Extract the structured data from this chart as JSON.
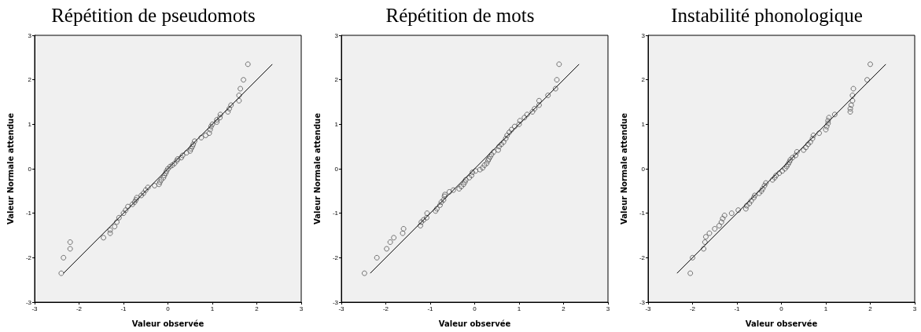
{
  "chart_data": [
    {
      "type": "scatter",
      "title": "Répétition de pseudomots",
      "xlabel": "Valeur observée",
      "ylabel": "Valeur Normale attendue",
      "xlim": [
        -3,
        3
      ],
      "ylim": [
        -3,
        3
      ],
      "xticks": [
        -3,
        -2,
        -1,
        0,
        1,
        2,
        3
      ],
      "yticks": [
        -3,
        -2,
        -1,
        0,
        1,
        2,
        3
      ],
      "grid": false,
      "series": [
        {
          "color": "#555555",
          "marker": "circle",
          "x": [
            -2.4,
            -2.35,
            -2.2,
            -2.2,
            -1.45,
            -1.3,
            -1.3,
            -1.2,
            -1.15,
            -1.1,
            -1.0,
            -0.95,
            -0.9,
            -0.8,
            -0.75,
            -0.72,
            -0.7,
            -0.6,
            -0.55,
            -0.5,
            -0.45,
            -0.3,
            -0.2,
            -0.18,
            -0.15,
            -0.1,
            -0.08,
            -0.05,
            -0.03,
            0,
            0.05,
            0.1,
            0.15,
            0.2,
            0.22,
            0.3,
            0.33,
            0.42,
            0.5,
            0.52,
            0.55,
            0.57,
            0.6,
            0.75,
            0.85,
            0.93,
            0.95,
            0.97,
            1.0,
            1.1,
            1.1,
            1.17,
            1.18,
            1.35,
            1.38,
            1.42,
            1.6,
            1.6,
            1.63,
            1.7,
            1.8
          ],
          "values": [
            -2.35,
            -2.0,
            -1.8,
            -1.65,
            -1.55,
            -1.45,
            -1.38,
            -1.3,
            -1.2,
            -1.1,
            -1.0,
            -0.93,
            -0.85,
            -0.8,
            -0.75,
            -0.7,
            -0.65,
            -0.6,
            -0.55,
            -0.48,
            -0.42,
            -0.38,
            -0.35,
            -0.3,
            -0.25,
            -0.2,
            -0.15,
            -0.1,
            -0.05,
            0,
            0.05,
            0.08,
            0.12,
            0.18,
            0.22,
            0.25,
            0.3,
            0.36,
            0.4,
            0.45,
            0.5,
            0.55,
            0.62,
            0.7,
            0.75,
            0.8,
            0.88,
            0.95,
            1.0,
            1.05,
            1.1,
            1.15,
            1.22,
            1.28,
            1.35,
            1.43,
            1.53,
            1.65,
            1.8,
            2.0,
            2.35
          ]
        },
        {
          "type": "line",
          "marker": "none",
          "color": "#000000",
          "x": [
            -2.35,
            2.35
          ],
          "values": [
            -2.35,
            2.35
          ]
        }
      ]
    },
    {
      "type": "scatter",
      "title": "Répétition de mots",
      "xlabel": "Valeur observée",
      "ylabel": "Valeur Normale attendue",
      "xlim": [
        -3,
        3
      ],
      "ylim": [
        -3,
        3
      ],
      "xticks": [
        -3,
        -2,
        -1,
        0,
        1,
        2,
        3
      ],
      "yticks": [
        -3,
        -2,
        -1,
        0,
        1,
        2,
        3
      ],
      "grid": false,
      "series": [
        {
          "color": "#555555",
          "marker": "circle",
          "x": [
            -2.48,
            -2.2,
            -1.98,
            -1.9,
            -1.82,
            -1.62,
            -1.6,
            -1.22,
            -1.2,
            -1.15,
            -1.08,
            -1.07,
            -0.88,
            -0.85,
            -0.78,
            -0.75,
            -0.7,
            -0.68,
            -0.67,
            -0.57,
            -0.48,
            -0.35,
            -0.3,
            -0.25,
            -0.22,
            -0.2,
            -0.12,
            -0.07,
            -0.05,
            0.02,
            0.12,
            0.18,
            0.22,
            0.27,
            0.3,
            0.32,
            0.35,
            0.38,
            0.43,
            0.53,
            0.55,
            0.6,
            0.65,
            0.7,
            0.73,
            0.78,
            0.83,
            0.9,
            1.0,
            1.02,
            1.12,
            1.18,
            1.3,
            1.35,
            1.45,
            1.45,
            1.65,
            1.82,
            1.85,
            1.9
          ],
          "values": [
            -2.35,
            -2.0,
            -1.8,
            -1.65,
            -1.55,
            -1.45,
            -1.35,
            -1.28,
            -1.2,
            -1.15,
            -1.1,
            -1.0,
            -0.95,
            -0.9,
            -0.82,
            -0.75,
            -0.7,
            -0.62,
            -0.58,
            -0.52,
            -0.48,
            -0.45,
            -0.4,
            -0.35,
            -0.3,
            -0.25,
            -0.2,
            -0.15,
            -0.08,
            -0.05,
            -0.02,
            0.02,
            0.08,
            0.12,
            0.18,
            0.22,
            0.27,
            0.32,
            0.38,
            0.42,
            0.5,
            0.55,
            0.6,
            0.68,
            0.75,
            0.82,
            0.88,
            0.95,
            1.0,
            1.08,
            1.15,
            1.22,
            1.28,
            1.35,
            1.43,
            1.53,
            1.65,
            1.8,
            2.0,
            2.35
          ]
        },
        {
          "type": "line",
          "marker": "none",
          "color": "#000000",
          "x": [
            -2.35,
            2.35
          ],
          "values": [
            -2.35,
            2.35
          ]
        }
      ]
    },
    {
      "type": "scatter",
      "title": "Instabilité phonologique",
      "xlabel": "Valeur observée",
      "ylabel": "Valeur Normale attendue",
      "xlim": [
        -3,
        3
      ],
      "ylim": [
        -3,
        3
      ],
      "xticks": [
        -3,
        -2,
        -1,
        0,
        1,
        2,
        3
      ],
      "yticks": [
        -3,
        -2,
        -1,
        0,
        1,
        2,
        3
      ],
      "grid": false,
      "series": [
        {
          "color": "#555555",
          "marker": "circle",
          "x": [
            -2.05,
            -2.0,
            -1.75,
            -1.72,
            -1.7,
            -1.62,
            -1.5,
            -1.4,
            -1.35,
            -1.32,
            -1.28,
            -1.12,
            -0.97,
            -0.8,
            -0.78,
            -0.72,
            -0.68,
            -0.62,
            -0.6,
            -0.5,
            -0.45,
            -0.42,
            -0.38,
            -0.35,
            -0.2,
            -0.15,
            -0.12,
            -0.05,
            0.02,
            0.08,
            0.12,
            0.15,
            0.18,
            0.2,
            0.25,
            0.32,
            0.35,
            0.5,
            0.55,
            0.6,
            0.65,
            0.7,
            0.72,
            0.85,
            1.0,
            1.02,
            1.05,
            1.05,
            1.07,
            1.2,
            1.55,
            1.55,
            1.57,
            1.6,
            1.6,
            1.62,
            1.93,
            2.0
          ],
          "values": [
            -2.35,
            -2.0,
            -1.8,
            -1.65,
            -1.53,
            -1.45,
            -1.35,
            -1.28,
            -1.2,
            -1.12,
            -1.05,
            -1.0,
            -0.93,
            -0.9,
            -0.83,
            -0.78,
            -0.72,
            -0.65,
            -0.6,
            -0.55,
            -0.5,
            -0.45,
            -0.38,
            -0.32,
            -0.25,
            -0.2,
            -0.15,
            -0.1,
            -0.05,
            0,
            0.05,
            0.1,
            0.15,
            0.2,
            0.25,
            0.3,
            0.38,
            0.42,
            0.48,
            0.55,
            0.6,
            0.68,
            0.75,
            0.8,
            0.88,
            0.95,
            1.02,
            1.08,
            1.15,
            1.22,
            1.28,
            1.35,
            1.43,
            1.53,
            1.65,
            1.8,
            2.0,
            2.35
          ]
        },
        {
          "type": "line",
          "marker": "none",
          "color": "#000000",
          "x": [
            -2.35,
            2.35
          ],
          "values": [
            -2.35,
            2.35
          ]
        }
      ]
    }
  ]
}
